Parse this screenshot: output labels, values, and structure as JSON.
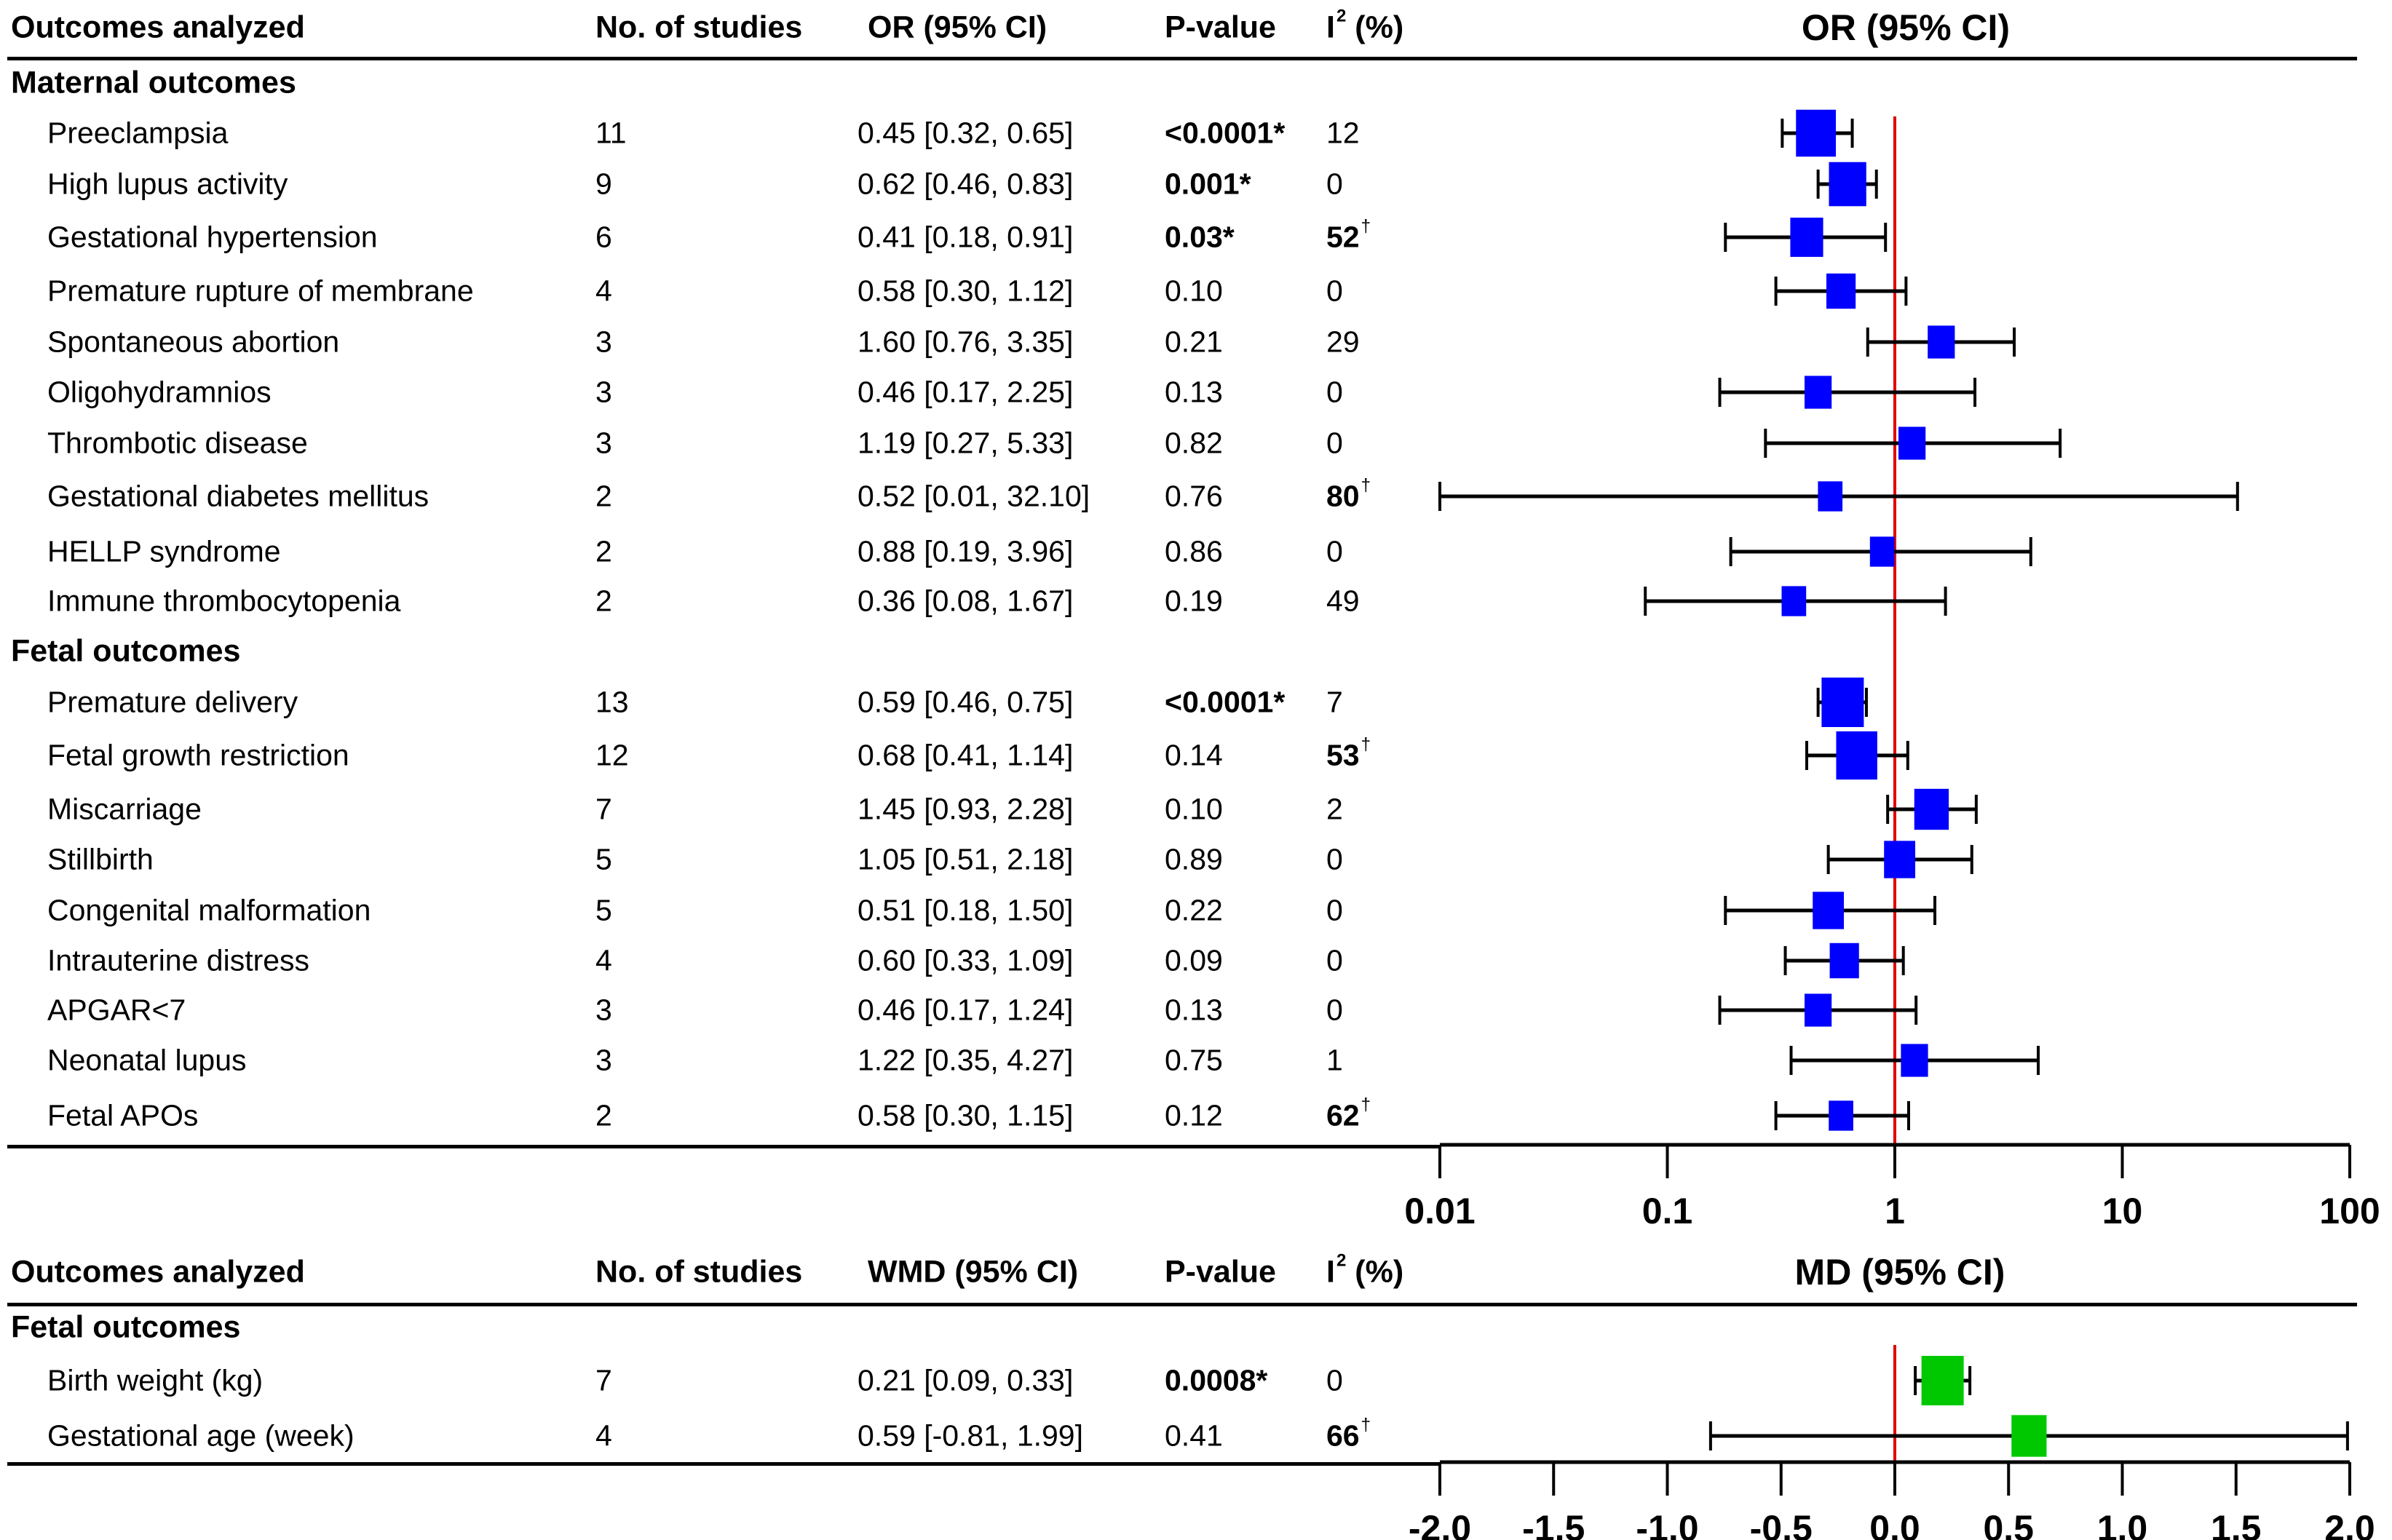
{
  "or_table": {
    "headers": {
      "outcome": "Outcomes analyzed",
      "n": "No. of studies",
      "effect": "OR (95% CI)",
      "p": "P-value",
      "i2_base": "I",
      "i2_sup": "2",
      "i2_rest": " (%)",
      "plot_title": "OR (95% CI)"
    },
    "sections": [
      {
        "title": "Maternal outcomes",
        "rows": [
          {
            "outcome": "Preeclampsia",
            "n": "11",
            "effect": "0.45 [0.32, 0.65]",
            "p": "<0.0001*",
            "p_bold": true,
            "i2": "12",
            "i2_bold": false
          },
          {
            "outcome": "High lupus activity",
            "n": "9",
            "effect": "0.62 [0.46, 0.83]",
            "p": "0.001*",
            "p_bold": true,
            "i2": "0",
            "i2_bold": false
          },
          {
            "outcome": "Gestational hypertension",
            "n": "6",
            "effect": "0.41 [0.18, 0.91]",
            "p": "0.03*",
            "p_bold": true,
            "i2": "52",
            "i2_bold": true
          },
          {
            "outcome": "Premature rupture of membrane",
            "n": "4",
            "effect": "0.58 [0.30, 1.12]",
            "p": "0.10",
            "p_bold": false,
            "i2": "0",
            "i2_bold": false
          },
          {
            "outcome": "Spontaneous abortion",
            "n": "3",
            "effect": "1.60 [0.76, 3.35]",
            "p": "0.21",
            "p_bold": false,
            "i2": "29",
            "i2_bold": false
          },
          {
            "outcome": "Oligohydramnios",
            "n": "3",
            "effect": "0.46 [0.17, 2.25]",
            "p": "0.13",
            "p_bold": false,
            "i2": "0",
            "i2_bold": false
          },
          {
            "outcome": "Thrombotic disease",
            "n": "3",
            "effect": "1.19 [0.27, 5.33]",
            "p": "0.82",
            "p_bold": false,
            "i2": "0",
            "i2_bold": false
          },
          {
            "outcome": "Gestational diabetes mellitus",
            "n": "2",
            "effect": "0.52 [0.01, 32.10]",
            "p": "0.76",
            "p_bold": false,
            "i2": "80",
            "i2_bold": true
          },
          {
            "outcome": "HELLP syndrome",
            "n": "2",
            "effect": "0.88 [0.19, 3.96]",
            "p": "0.86",
            "p_bold": false,
            "i2": "0",
            "i2_bold": false
          },
          {
            "outcome": "Immune thrombocytopenia",
            "n": "2",
            "effect": "0.36 [0.08, 1.67]",
            "p": "0.19",
            "p_bold": false,
            "i2": "49",
            "i2_bold": false
          }
        ]
      },
      {
        "title": "Fetal outcomes",
        "rows": [
          {
            "outcome": "Premature delivery",
            "n": "13",
            "effect": "0.59 [0.46, 0.75]",
            "p": "<0.0001*",
            "p_bold": true,
            "i2": "7",
            "i2_bold": false
          },
          {
            "outcome": "Fetal growth restriction",
            "n": "12",
            "effect": "0.68 [0.41, 1.14]",
            "p": "0.14",
            "p_bold": false,
            "i2": "53",
            "i2_bold": true
          },
          {
            "outcome": "Miscarriage",
            "n": "7",
            "effect": "1.45 [0.93, 2.28]",
            "p": "0.10",
            "p_bold": false,
            "i2": "2",
            "i2_bold": false
          },
          {
            "outcome": "Stillbirth",
            "n": "5",
            "effect": "1.05 [0.51, 2.18]",
            "p": "0.89",
            "p_bold": false,
            "i2": "0",
            "i2_bold": false
          },
          {
            "outcome": "Congenital malformation",
            "n": "5",
            "effect": "0.51 [0.18, 1.50]",
            "p": "0.22",
            "p_bold": false,
            "i2": "0",
            "i2_bold": false
          },
          {
            "outcome": "Intrauterine distress",
            "n": "4",
            "effect": "0.60 [0.33, 1.09]",
            "p": "0.09",
            "p_bold": false,
            "i2": "0",
            "i2_bold": false
          },
          {
            "outcome": "APGAR<7",
            "n": "3",
            "effect": "0.46 [0.17, 1.24]",
            "p": "0.13",
            "p_bold": false,
            "i2": "0",
            "i2_bold": false
          },
          {
            "outcome": "Neonatal lupus",
            "n": "3",
            "effect": "1.22 [0.35, 4.27]",
            "p": "0.75",
            "p_bold": false,
            "i2": "1",
            "i2_bold": false
          },
          {
            "outcome": "Fetal APOs",
            "n": "2",
            "effect": "0.58 [0.30, 1.15]",
            "p": "0.12",
            "p_bold": false,
            "i2": "62",
            "i2_bold": true
          }
        ]
      }
    ],
    "dagger": "†"
  },
  "md_table": {
    "headers": {
      "outcome": "Outcomes analyzed",
      "n": "No. of studies",
      "effect": "WMD (95% CI)",
      "p": "P-value",
      "i2_base": "I",
      "i2_sup": "2",
      "i2_rest": " (%)",
      "plot_title": "MD (95% CI)"
    },
    "sections": [
      {
        "title": "Fetal outcomes",
        "rows": [
          {
            "outcome": "Birth weight (kg)",
            "n": "7",
            "effect": "0.21 [0.09, 0.33]",
            "p": "0.0008*",
            "p_bold": true,
            "i2": "0",
            "i2_bold": false
          },
          {
            "outcome": "Gestational age (week)",
            "n": "4",
            "effect": "0.59 [-0.81, 1.99]",
            "p": "0.41",
            "p_bold": false,
            "i2": "66",
            "i2_bold": true
          }
        ]
      }
    ]
  },
  "colors": {
    "or_marker": "#0000ff",
    "md_marker": "#00c800",
    "reference_line": "#e00000",
    "whisker": "#000000"
  },
  "chart_data": [
    {
      "type": "scatter",
      "subtype": "forest",
      "title": "OR (95% CI)",
      "xscale": "log",
      "xlim": [
        0.01,
        100
      ],
      "xticks": [
        "0.01",
        "0.1",
        "1",
        "10",
        "100"
      ],
      "reference_value": 1,
      "categories": [
        "Preeclampsia",
        "High lupus activity",
        "Gestational hypertension",
        "Premature rupture of membrane",
        "Spontaneous abortion",
        "Oligohydramnios",
        "Thrombotic disease",
        "Gestational diabetes mellitus",
        "HELLP syndrome",
        "Immune thrombocytopenia",
        "Premature delivery",
        "Fetal growth restriction",
        "Miscarriage",
        "Stillbirth",
        "Congenital malformation",
        "Intrauterine distress",
        "APGAR<7",
        "Neonatal lupus",
        "Fetal APOs"
      ],
      "series": [
        {
          "name": "OR",
          "values": [
            0.45,
            0.62,
            0.41,
            0.58,
            1.6,
            0.46,
            1.19,
            0.52,
            0.88,
            0.36,
            0.59,
            0.68,
            1.45,
            1.05,
            0.51,
            0.6,
            0.46,
            1.22,
            0.58
          ]
        },
        {
          "name": "CI lower",
          "values": [
            0.32,
            0.46,
            0.18,
            0.3,
            0.76,
            0.17,
            0.27,
            0.01,
            0.19,
            0.08,
            0.46,
            0.41,
            0.93,
            0.51,
            0.18,
            0.33,
            0.17,
            0.35,
            0.3
          ]
        },
        {
          "name": "CI upper",
          "values": [
            0.65,
            0.83,
            0.91,
            1.12,
            3.35,
            2.25,
            5.33,
            32.1,
            3.96,
            1.67,
            0.75,
            1.14,
            2.28,
            2.18,
            1.5,
            1.09,
            1.24,
            4.27,
            1.15
          ]
        },
        {
          "name": "No. of studies",
          "values": [
            11,
            9,
            6,
            4,
            3,
            3,
            3,
            2,
            2,
            2,
            13,
            12,
            7,
            5,
            5,
            4,
            3,
            3,
            2
          ]
        }
      ]
    },
    {
      "type": "scatter",
      "subtype": "forest",
      "title": "MD (95% CI)",
      "xscale": "linear",
      "xlim": [
        -2.0,
        2.0
      ],
      "xticks": [
        "-2.0",
        "-1.5",
        "-1.0",
        "-0.5",
        "0.0",
        "0.5",
        "1.0",
        "1.5",
        "2.0"
      ],
      "reference_value": 0,
      "categories": [
        "Birth weight (kg)",
        "Gestational age (week)"
      ],
      "series": [
        {
          "name": "WMD",
          "values": [
            0.21,
            0.59
          ]
        },
        {
          "name": "CI lower",
          "values": [
            0.09,
            -0.81
          ]
        },
        {
          "name": "CI upper",
          "values": [
            0.33,
            1.99
          ]
        },
        {
          "name": "No. of studies",
          "values": [
            7,
            4
          ]
        }
      ]
    }
  ]
}
